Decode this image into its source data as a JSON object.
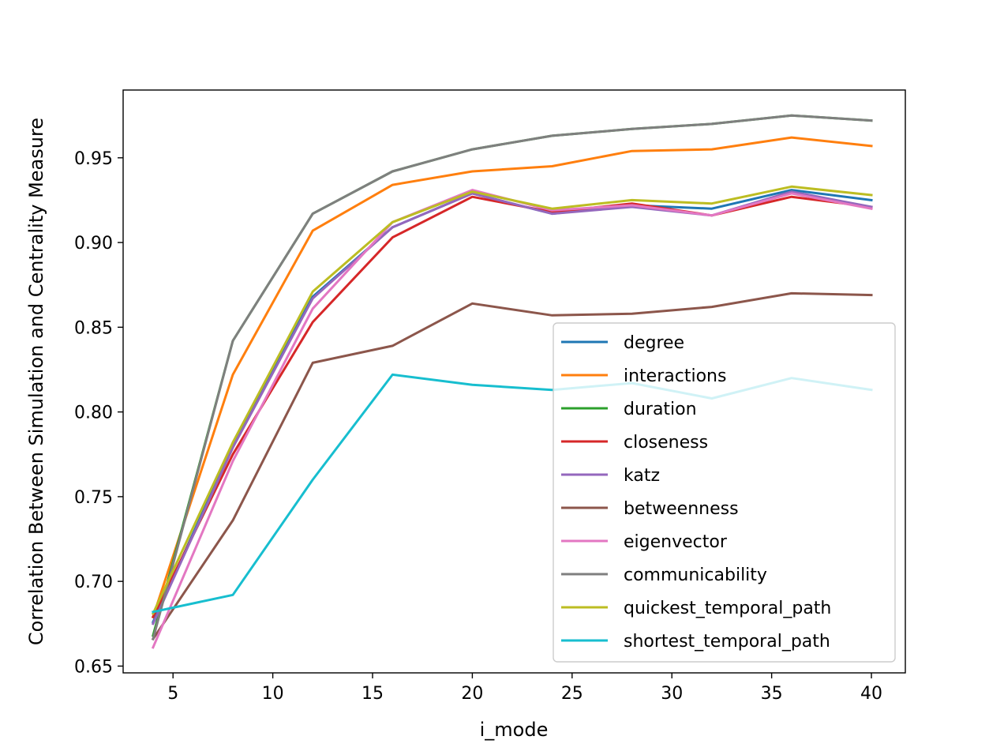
{
  "chart_data": {
    "type": "line",
    "title": "",
    "xlabel": "i_mode",
    "ylabel": "Correlation Between Simulation and Centrality Measure",
    "xlim": [
      2.5,
      41.7
    ],
    "ylim": [
      0.646,
      0.99
    ],
    "xticks": [
      5,
      10,
      15,
      20,
      25,
      30,
      35,
      40
    ],
    "xtick_labels": [
      "5",
      "10",
      "15",
      "20",
      "25",
      "30",
      "35",
      "40"
    ],
    "yticks": [
      0.65,
      0.7,
      0.75,
      0.8,
      0.85,
      0.9,
      0.95
    ],
    "ytick_labels": [
      "0.65",
      "0.70",
      "0.75",
      "0.80",
      "0.85",
      "0.90",
      "0.95"
    ],
    "grid": false,
    "legend_position": "lower-right",
    "x": [
      4,
      8,
      12,
      16,
      20,
      24,
      28,
      32,
      36,
      40
    ],
    "series": [
      {
        "name": "degree",
        "color": "#1f77b4",
        "values": [
          0.676,
          0.78,
          0.868,
          0.909,
          0.929,
          0.917,
          0.922,
          0.92,
          0.931,
          0.925
        ]
      },
      {
        "name": "interactions",
        "color": "#ff7f0e",
        "values": [
          0.679,
          0.822,
          0.907,
          0.934,
          0.942,
          0.945,
          0.954,
          0.955,
          0.962,
          0.957
        ]
      },
      {
        "name": "duration",
        "color": "#2ca02c",
        "values": [
          0.668,
          0.842,
          0.917,
          0.942,
          0.955,
          0.963,
          0.967,
          0.97,
          0.975,
          0.972
        ]
      },
      {
        "name": "closeness",
        "color": "#d62728",
        "values": [
          0.679,
          0.775,
          0.853,
          0.903,
          0.927,
          0.918,
          0.923,
          0.916,
          0.927,
          0.921
        ]
      },
      {
        "name": "katz",
        "color": "#9467bd",
        "values": [
          0.675,
          0.779,
          0.867,
          0.909,
          0.929,
          0.917,
          0.921,
          0.916,
          0.93,
          0.921
        ]
      },
      {
        "name": "betweenness",
        "color": "#8c564b",
        "values": [
          0.666,
          0.736,
          0.829,
          0.839,
          0.864,
          0.857,
          0.858,
          0.862,
          0.87,
          0.869
        ]
      },
      {
        "name": "eigenvector",
        "color": "#e377c2",
        "values": [
          0.661,
          0.771,
          0.861,
          0.912,
          0.931,
          0.919,
          0.922,
          0.916,
          0.929,
          0.92
        ]
      },
      {
        "name": "communicability",
        "color": "#7f7f7f",
        "values": [
          0.666,
          0.842,
          0.917,
          0.942,
          0.955,
          0.963,
          0.967,
          0.97,
          0.975,
          0.972
        ]
      },
      {
        "name": "quickest_temporal_path",
        "color": "#bcbd22",
        "values": [
          0.681,
          0.782,
          0.871,
          0.912,
          0.93,
          0.92,
          0.925,
          0.923,
          0.933,
          0.928
        ]
      },
      {
        "name": "shortest_temporal_path",
        "color": "#17becf",
        "values": [
          0.682,
          0.692,
          0.76,
          0.822,
          0.816,
          0.813,
          0.817,
          0.808,
          0.82,
          0.813
        ]
      }
    ]
  }
}
